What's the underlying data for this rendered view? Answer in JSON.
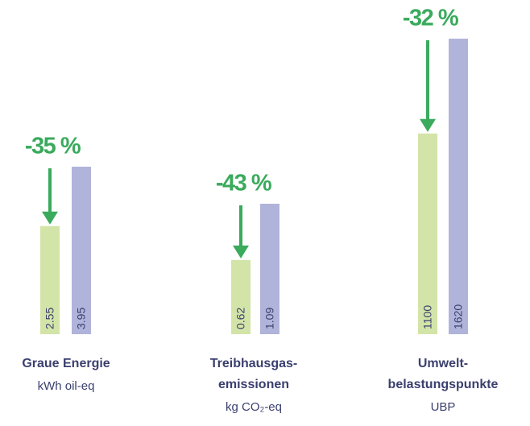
{
  "chart_data": [
    {
      "type": "bar",
      "title": [
        "Graue Energie"
      ],
      "unit": "kWh oil-eq",
      "annotation": "-35 %",
      "values": [
        2.55,
        3.95
      ],
      "colors": [
        "#d3e4a8",
        "#b0b4da"
      ],
      "annotation_color": "#3aaa5c"
    },
    {
      "type": "bar",
      "title": [
        "Treibhausgas-",
        "emissionen"
      ],
      "unit": "kg CO₂-eq",
      "annotation": "-43 %",
      "values": [
        0.62,
        1.09
      ],
      "colors": [
        "#d3e4a8",
        "#b0b4da"
      ],
      "annotation_color": "#3aaa5c"
    },
    {
      "type": "bar",
      "title": [
        "Umwelt-",
        "belastungspunkte"
      ],
      "unit": "UBP",
      "annotation": "-32 %",
      "values": [
        1100,
        1620
      ],
      "colors": [
        "#d3e4a8",
        "#b0b4da"
      ],
      "annotation_color": "#3aaa5c"
    }
  ]
}
